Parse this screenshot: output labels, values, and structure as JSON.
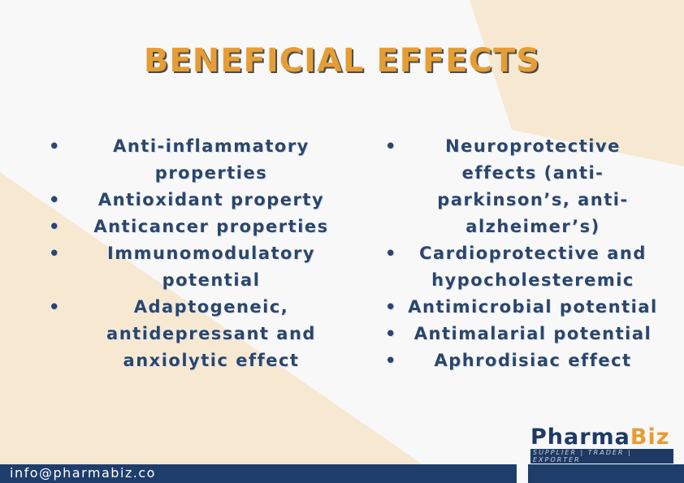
{
  "title": "BENEFICIAL EFFECTS",
  "left_items": [
    "Anti-inflammatory properties",
    "Antioxidant property",
    "Anticancer properties",
    "Immunomodulatory potential",
    "Adaptogeneic, antidepressant and anxiolytic effect"
  ],
  "right_items": [
    "Neuroprotective effects (anti-parkinson’s, anti-alzheimer’s)",
    "Cardioprotective and hypocholesteremic",
    "Antimicrobial potential",
    "Antimalarial potential",
    "Aphrodisiac   effect"
  ],
  "bullet": "•",
  "logo": {
    "part1": "Pharma",
    "part2": "Biz",
    "tagline": "SUPPLIER | TRADER | EXPORTER"
  },
  "footer": {
    "email": "info@pharmabiz.co"
  },
  "colors": {
    "accent": "#e59d34",
    "navy": "#1e3d6b",
    "beige": "#f7e8d2"
  }
}
